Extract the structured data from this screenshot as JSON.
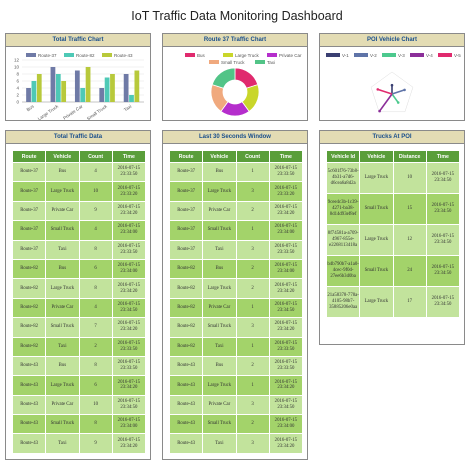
{
  "page": {
    "title": "IoT Traffic Data Monitoring Dashboard"
  },
  "colors": {
    "header_bg": "#e3dcb4",
    "header_text": "#1a4f8c",
    "table_header": "#5a9e3a",
    "row_light": "#c2e39c",
    "row_dark": "#a3d36a"
  },
  "total_chart": {
    "heading": "Total Traffic Chart",
    "chart_data": {
      "type": "bar",
      "categories": [
        "Bus",
        "Large Truck",
        "Private Car",
        "Small Truck",
        "Taxi"
      ],
      "series": [
        {
          "name": "Route-37",
          "color": "#6f7aa6",
          "values": [
            4,
            10,
            9,
            4,
            8
          ]
        },
        {
          "name": "Route-82",
          "color": "#4ec9b6",
          "values": [
            6,
            8,
            4,
            7,
            2
          ]
        },
        {
          "name": "Route-43",
          "color": "#b8c93b",
          "values": [
            8,
            6,
            10,
            8,
            9
          ]
        }
      ],
      "ylim": [
        0,
        12
      ],
      "yticks": [
        "0",
        "2",
        "4",
        "6",
        "8",
        "10",
        "12"
      ]
    }
  },
  "route37_chart": {
    "heading": "Route 37 Traffic Chart",
    "chart_data": {
      "type": "pie",
      "labels": [
        "Bus",
        "Large Truck",
        "Private Car",
        "Small Truck",
        "Taxi"
      ],
      "values": [
        20,
        20,
        20,
        20,
        20
      ],
      "colors": [
        "#e02a6e",
        "#c9d62a",
        "#b52ecc",
        "#f0a97e",
        "#52c487"
      ]
    }
  },
  "poi_chart": {
    "heading": "POI Vehicle Chart",
    "chart_data": {
      "type": "radar",
      "labels": [
        "V-1",
        "V-2",
        "V-3",
        "V-4",
        "V-5"
      ],
      "values": [
        10,
        15,
        12,
        24,
        17
      ],
      "colors": [
        "#3a3f72",
        "#5f74a8",
        "#4cc98e",
        "#8b2e99",
        "#e02a6e"
      ]
    }
  },
  "total_table": {
    "heading": "Total Traffic Data",
    "columns": [
      "Route",
      "Vehicle",
      "Count",
      "Time"
    ],
    "rows": [
      [
        "Route-37",
        "Bus",
        "4",
        "2016-07-15 23:33:50"
      ],
      [
        "Route-37",
        "Large Truck",
        "10",
        "2016-07-15 23:33:20"
      ],
      [
        "Route-37",
        "Private Car",
        "9",
        "2016-07-15 23:34:20"
      ],
      [
        "Route-37",
        "Small Truck",
        "4",
        "2016-07-15 23:34:00"
      ],
      [
        "Route-37",
        "Taxi",
        "8",
        "2016-07-15 23:33:50"
      ],
      [
        "Route-82",
        "Bus",
        "6",
        "2016-07-15 23:34:00"
      ],
      [
        "Route-82",
        "Large Truck",
        "8",
        "2016-07-15 23:34:20"
      ],
      [
        "Route-82",
        "Private Car",
        "4",
        "2016-07-15 23:34:50"
      ],
      [
        "Route-82",
        "Small Truck",
        "7",
        "2016-07-15 23:34:20"
      ],
      [
        "Route-82",
        "Taxi",
        "2",
        "2016-07-15 23:33:50"
      ],
      [
        "Route-43",
        "Bus",
        "8",
        "2016-07-15 23:33:50"
      ],
      [
        "Route-43",
        "Large Truck",
        "6",
        "2016-07-15 23:34:20"
      ],
      [
        "Route-43",
        "Private Car",
        "10",
        "2016-07-15 23:34:50"
      ],
      [
        "Route-43",
        "Small Truck",
        "8",
        "2016-07-15 23:34:00"
      ],
      [
        "Route-43",
        "Taxi",
        "9",
        "2016-07-15 23:34:20"
      ]
    ]
  },
  "window_table": {
    "heading": "Last 30 Seconds Window",
    "columns": [
      "Route",
      "Vehicle",
      "Count",
      "Time"
    ],
    "rows": [
      [
        "Route-37",
        "Bus",
        "1",
        "2016-07-15 23:33:50"
      ],
      [
        "Route-37",
        "Large Truck",
        "3",
        "2016-07-15 23:33:20"
      ],
      [
        "Route-37",
        "Private Car",
        "2",
        "2016-07-15 23:34:20"
      ],
      [
        "Route-37",
        "Small Truck",
        "1",
        "2016-07-15 23:34:00"
      ],
      [
        "Route-37",
        "Taxi",
        "3",
        "2016-07-15 23:33:50"
      ],
      [
        "Route-82",
        "Bus",
        "2",
        "2016-07-15 23:34:00"
      ],
      [
        "Route-82",
        "Large Truck",
        "2",
        "2016-07-15 23:34:20"
      ],
      [
        "Route-82",
        "Private Car",
        "1",
        "2016-07-15 23:34:50"
      ],
      [
        "Route-82",
        "Small Truck",
        "3",
        "2016-07-15 23:34:20"
      ],
      [
        "Route-82",
        "Taxi",
        "1",
        "2016-07-15 23:33:50"
      ],
      [
        "Route-43",
        "Bus",
        "2",
        "2016-07-15 23:33:50"
      ],
      [
        "Route-43",
        "Large Truck",
        "1",
        "2016-07-15 23:34:20"
      ],
      [
        "Route-43",
        "Private Car",
        "3",
        "2016-07-15 23:34:50"
      ],
      [
        "Route-43",
        "Small Truck",
        "2",
        "2016-07-15 23:34:00"
      ],
      [
        "Route-43",
        "Taxi",
        "3",
        "2016-07-15 23:34:20"
      ]
    ]
  },
  "poi_table": {
    "heading": "Trucks At POI",
    "columns": [
      "Vehicle Id",
      "Vehicle",
      "Distance",
      "Time"
    ],
    "rows": [
      [
        "5c601f76-73b8-4b31-a7d6-d6cea6a8d2a",
        "Large Truck",
        "10",
        "2016-07-15 23:34:50"
      ],
      [
        "9cee4c3b-1c39-4271-ba38-8d14d93ef8ef",
        "Small Truck",
        "15",
        "2016-07-15 23:34:50"
      ],
      [
        "8f74581a-a709-4967-855e-e2268113418a",
        "Large Truck",
        "12",
        "2016-07-15 23:34:50"
      ],
      [
        "b4b790b7-a1a0-4cec-9f0d-27ee6b3d0ba",
        "Small Truck",
        "24",
        "2016-07-15 23:34:50"
      ],
      [
        "21a58378-778a-4105-98b7-35885206e0aa",
        "Large Truck",
        "17",
        "2016-07-15 23:34:50"
      ]
    ]
  }
}
